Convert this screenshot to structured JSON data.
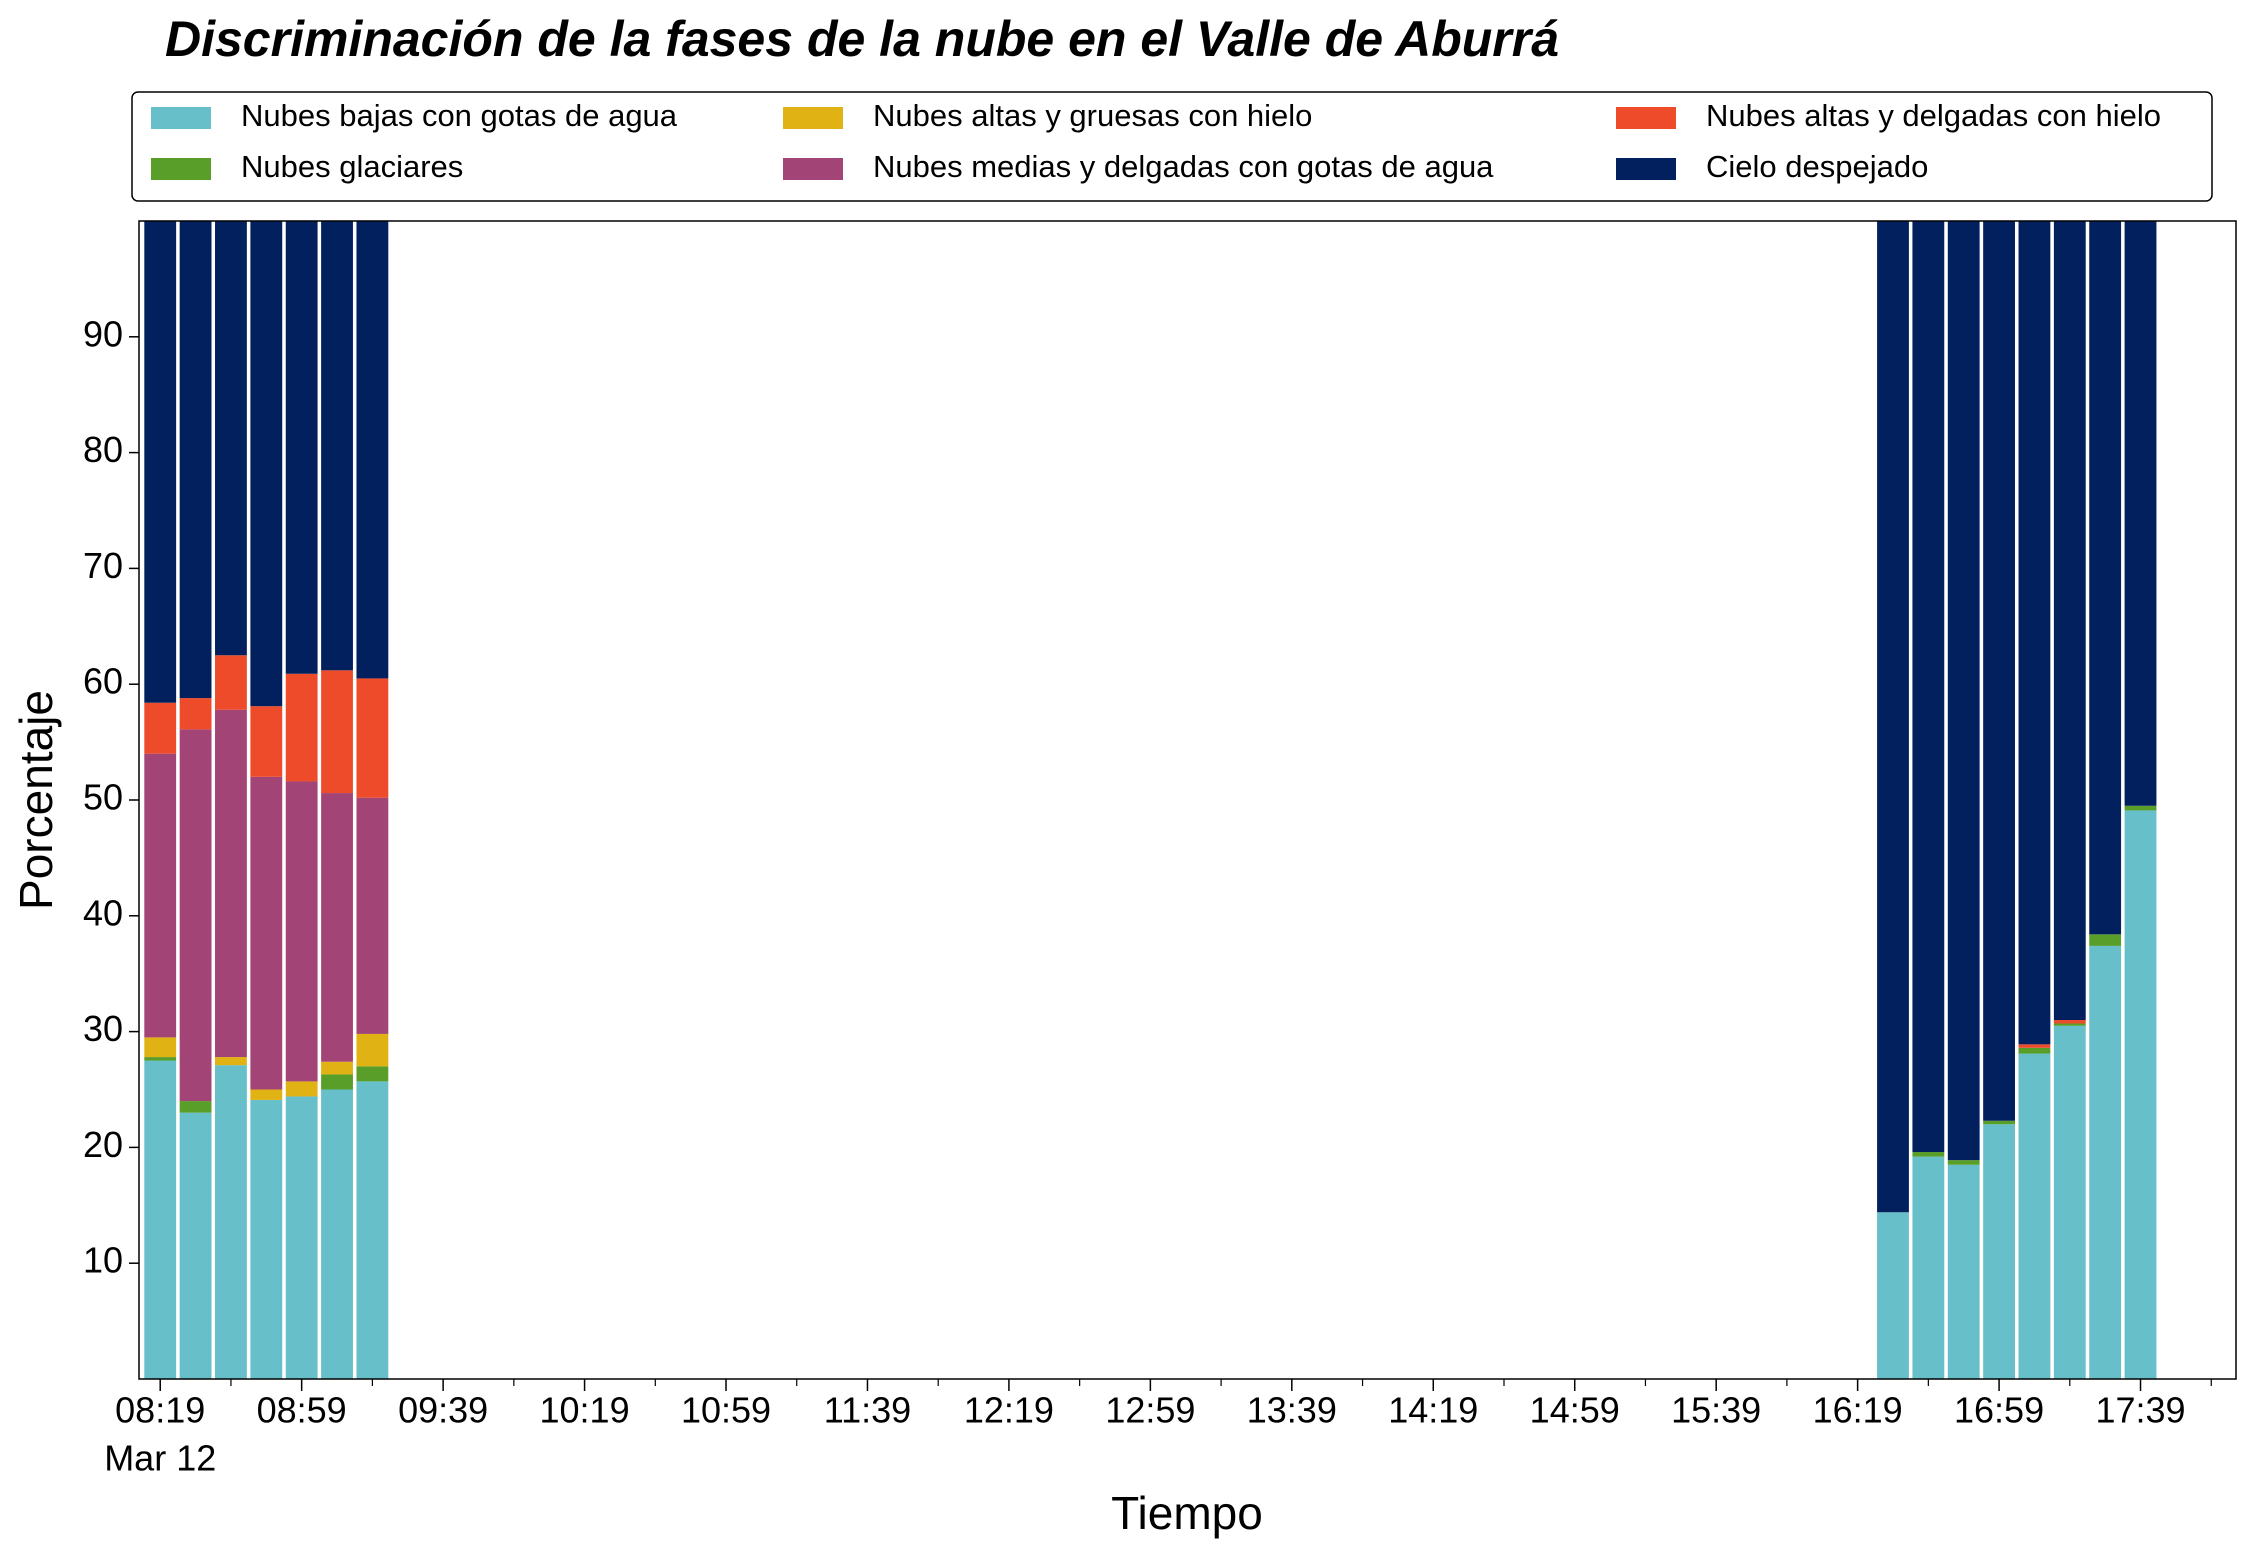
{
  "chart_data": {
    "type": "bar",
    "stacked": true,
    "title": "Discriminación de la fases de la nube en el Valle de Aburrá",
    "xlabel": "Tiempo",
    "ylabel": "Porcentaje",
    "x_date_label": "Mar 12",
    "x": [
      "08:19",
      "08:29",
      "08:39",
      "08:49",
      "08:59",
      "09:09",
      "09:19",
      "16:29",
      "16:39",
      "16:49",
      "16:59",
      "17:09",
      "17:19",
      "17:29",
      "17:39"
    ],
    "series": [
      {
        "name": "Nubes bajas con gotas de agua",
        "color": "#67bfca",
        "values": [
          27.5,
          23,
          27.1,
          24.1,
          24.4,
          25,
          25.7,
          14.4,
          19.2,
          18.5,
          22,
          28.1,
          30.5,
          37.4,
          49.1
        ]
      },
      {
        "name": "Nubes glaciares",
        "color": "#5a9e2a",
        "values": [
          0.3,
          1,
          0,
          0,
          0,
          1.3,
          1.3,
          0,
          0.4,
          0.4,
          0.3,
          0.5,
          0.2,
          1,
          0.4
        ]
      },
      {
        "name": "Nubes altas y gruesas con hielo",
        "color": "#e0b214",
        "values": [
          1.7,
          0,
          0.7,
          0.9,
          1.3,
          1.1,
          2.8,
          0,
          0,
          0,
          0,
          0,
          0,
          0,
          0
        ]
      },
      {
        "name": "Nubes medias y delgadas con gotas de agua",
        "color": "#a34477",
        "values": [
          24.5,
          32.1,
          30,
          27,
          25.9,
          23.2,
          20.4,
          0,
          0,
          0,
          0,
          0,
          0,
          0,
          0
        ]
      },
      {
        "name": "Nubes altas y delgadas con hielo",
        "color": "#ee4b2b",
        "values": [
          4.4,
          2.7,
          4.7,
          6.1,
          9.3,
          10.6,
          10.3,
          0,
          0,
          0,
          0,
          0.3,
          0.3,
          0,
          0
        ]
      },
      {
        "name": "Cielo despejado",
        "color": "#03205e",
        "values": [
          41.6,
          41.2,
          37.5,
          41.9,
          39.1,
          38.8,
          39.5,
          85.6,
          80.4,
          81.1,
          77.7,
          71.1,
          69,
          61.6,
          50.5
        ]
      }
    ],
    "xlim": [
      "08:13",
      "18:06"
    ],
    "xticks": [
      "08:19",
      "08:59",
      "09:39",
      "10:19",
      "10:59",
      "11:39",
      "12:19",
      "12:59",
      "13:39",
      "14:19",
      "14:59",
      "15:39",
      "16:19",
      "16:59",
      "17:39"
    ],
    "xticks_minor": [
      "08:39",
      "09:19",
      "09:59",
      "10:39",
      "11:19",
      "11:59",
      "12:39",
      "13:19",
      "13:59",
      "14:39",
      "15:19",
      "15:59",
      "16:39",
      "17:19",
      "17:59"
    ],
    "ylim": [
      0,
      100
    ],
    "yticks": [
      10,
      20,
      30,
      40,
      50,
      60,
      70,
      80,
      90
    ],
    "legend": "top",
    "legend_columns": 3,
    "grid": false
  }
}
